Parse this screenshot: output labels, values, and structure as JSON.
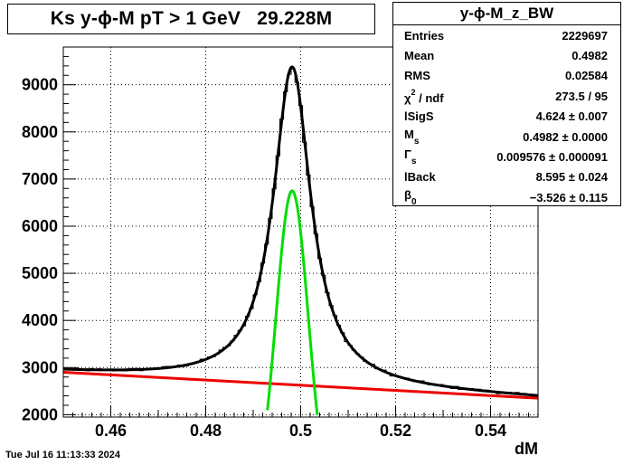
{
  "chart_data": {
    "type": "line",
    "title": "Ks y-ϕ-M pT > 1 GeV   29.228M",
    "xlabel": "dM",
    "ylabel": "",
    "xlim": [
      0.45,
      0.55
    ],
    "ylim": [
      1950,
      9800
    ],
    "x_ticks": [
      "0.46",
      "0.48",
      "0.5",
      "0.52",
      "0.54"
    ],
    "x_tick_values": [
      0.46,
      0.48,
      0.5,
      0.52,
      0.54
    ],
    "y_ticks": [
      "2000",
      "3000",
      "4000",
      "5000",
      "6000",
      "7000",
      "8000",
      "9000"
    ],
    "y_tick_values": [
      2000,
      3000,
      4000,
      5000,
      6000,
      7000,
      8000,
      9000
    ],
    "grid": true,
    "histogram": {
      "name": "y-ϕ-M_z_BW",
      "bin_width": 0.0008,
      "x_start": 0.45,
      "noise_amplitude": 35,
      "color": "#000000"
    },
    "series": [
      {
        "role": "total-fit",
        "color": "#000000",
        "peak_x": 0.4982,
        "peak_y": 9380,
        "gamma": 0.0096,
        "background_at_xmin": 2900,
        "background_at_xmax": 2350
      },
      {
        "role": "signal",
        "color": "#00dd00",
        "peak_x": 0.4982,
        "peak_y": 6750,
        "sigma": 0.0034,
        "y_cut": 1950
      },
      {
        "role": "background",
        "color": "#ee0000",
        "values_at_xlim": [
          2900,
          2350
        ]
      }
    ]
  },
  "title_text": "Ks y-ϕ-M pT > 1 GeV   29.228M",
  "stats": {
    "title": "y-ϕ-M_z_BW",
    "rows": [
      {
        "label": "Entries",
        "sub": "",
        "sup": "",
        "suffix": "",
        "value": "2229697"
      },
      {
        "label": "Mean",
        "sub": "",
        "sup": "",
        "suffix": "",
        "value": "0.4982"
      },
      {
        "label": "RMS",
        "sub": "",
        "sup": "",
        "suffix": "",
        "value": "0.02584"
      },
      {
        "label": "χ",
        "sub": "",
        "sup": "2",
        "suffix": " / ndf",
        "value": "273.5 / 95"
      },
      {
        "label": "lSigS",
        "sub": "",
        "sup": "",
        "suffix": "",
        "value": "4.624 ± 0.007"
      },
      {
        "label": "M",
        "sub": "s",
        "sup": "",
        "suffix": "",
        "value": "0.4982 ± 0.0000"
      },
      {
        "label": "Γ",
        "sub": "s",
        "sup": "",
        "suffix": "",
        "value": "0.009576 ± 0.000091"
      },
      {
        "label": "lBack",
        "sub": "",
        "sup": "",
        "suffix": "",
        "value": "8.595 ± 0.024"
      },
      {
        "label": "β",
        "sub": "0",
        "sup": "",
        "suffix": "",
        "value": "−3.526 ± 0.115"
      }
    ]
  },
  "datestamp": "Tue Jul 16 11:13:33 2024"
}
